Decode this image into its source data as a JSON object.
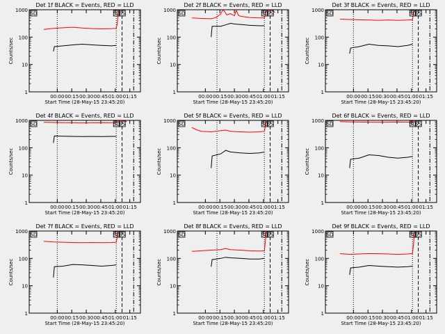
{
  "chart_data": [
    {
      "type": "line",
      "title": "Det 1f BLACK = Events, RED = LLD",
      "xlabel": "Start Time (28-May-15 23:45:20)",
      "ylabel": "Counts/sec",
      "y_scale": "log",
      "ylim": [
        1,
        1000
      ],
      "x_ticks": [
        "00:00",
        "00:15",
        "00:30",
        "00:45",
        "01:00",
        "01:15"
      ],
      "y_ticks": [
        "1",
        "10",
        "100",
        "1000"
      ],
      "markers": [
        "SD",
        "SS"
      ],
      "series": [
        {
          "color": "#ff0000",
          "x": [
            0,
            5,
            10,
            20,
            30,
            40,
            50,
            60,
            70,
            75,
            76,
            77,
            78,
            79,
            80
          ],
          "y": [
            190,
            200,
            210,
            220,
            230,
            215,
            205,
            200,
            205,
            210,
            300,
            700,
            1000,
            1000,
            1000
          ]
        },
        {
          "color": "#000000",
          "x": [
            10,
            11,
            20,
            30,
            40,
            50,
            60,
            70,
            75
          ],
          "y": [
            30,
            45,
            48,
            52,
            55,
            52,
            50,
            48,
            50
          ]
        }
      ],
      "vlines": [
        {
          "style": "dotted",
          "x": 14
        },
        {
          "style": "dotted",
          "x": 75
        },
        {
          "style": "dashed",
          "x": 81
        },
        {
          "style": "dashdot",
          "x": 93
        }
      ]
    },
    {
      "type": "line",
      "title": "Det 2f BLACK = Events, RED = LLD",
      "xlabel": "Start Time (28-May-15 23:45:20)",
      "ylabel": "Counts/sec",
      "y_scale": "log",
      "ylim": [
        1,
        1000
      ],
      "x_ticks": [
        "00:00",
        "00:15",
        "00:30",
        "00:45",
        "01:00",
        "01:15"
      ],
      "y_ticks": [
        "1",
        "10",
        "100",
        "1000"
      ],
      "markers": [
        "SD",
        "SS"
      ],
      "series": [
        {
          "color": "#ff0000",
          "x": [
            0,
            10,
            20,
            25,
            30,
            32,
            34,
            36,
            40,
            44,
            46,
            48,
            50,
            60,
            70,
            75,
            76,
            77,
            78,
            82,
            86
          ],
          "y": [
            500,
            480,
            470,
            520,
            700,
            1000,
            850,
            650,
            720,
            600,
            950,
            640,
            580,
            520,
            500,
            500,
            700,
            1000,
            1000,
            1000,
            800
          ]
        },
        {
          "color": "#000000",
          "x": [
            20,
            21,
            30,
            35,
            40,
            45,
            50,
            60,
            70,
            75
          ],
          "y": [
            100,
            250,
            250,
            280,
            320,
            300,
            290,
            270,
            260,
            260
          ]
        }
      ],
      "vlines": [
        {
          "style": "dotted",
          "x": 26
        },
        {
          "style": "dotted",
          "x": 75
        },
        {
          "style": "dashed",
          "x": 81
        },
        {
          "style": "dashdot",
          "x": 93
        }
      ]
    },
    {
      "type": "line",
      "title": "Det 3f BLACK = Events, RED = LLD",
      "xlabel": "Start Time (28-May-15 23:45:20)",
      "ylabel": "Counts/sec",
      "y_scale": "log",
      "ylim": [
        1,
        1000
      ],
      "x_ticks": [
        "00:00",
        "00:15",
        "00:30",
        "00:45",
        "01:00",
        "01:15"
      ],
      "y_ticks": [
        "1",
        "10",
        "100",
        "1000"
      ],
      "markers": [
        "SD",
        "SS"
      ],
      "series": [
        {
          "color": "#ff0000",
          "x": [
            0,
            10,
            20,
            30,
            40,
            50,
            60,
            70,
            75,
            76,
            77,
            78
          ],
          "y": [
            450,
            440,
            430,
            420,
            410,
            420,
            410,
            420,
            430,
            700,
            1000,
            1000
          ]
        },
        {
          "color": "#000000",
          "x": [
            10,
            11,
            20,
            30,
            40,
            50,
            60,
            70,
            75
          ],
          "y": [
            25,
            40,
            45,
            55,
            50,
            48,
            45,
            50,
            55
          ]
        }
      ],
      "vlines": [
        {
          "style": "dotted",
          "x": 14
        },
        {
          "style": "dotted",
          "x": 75
        },
        {
          "style": "dashed",
          "x": 81
        },
        {
          "style": "dashdot",
          "x": 93
        }
      ]
    },
    {
      "type": "line",
      "title": "Det 4f BLACK = Events, RED = LLD",
      "xlabel": "Start Time (28-May-15 23:45:20)",
      "ylabel": "Counts/sec",
      "y_scale": "log",
      "ylim": [
        1,
        1000
      ],
      "x_ticks": [
        "00:00",
        "00:15",
        "00:30",
        "00:45",
        "01:00",
        "01:15"
      ],
      "y_ticks": [
        "1",
        "10",
        "100",
        "1000"
      ],
      "markers": [
        "SD",
        "SS"
      ],
      "series": [
        {
          "color": "#ff0000",
          "x": [
            0,
            10,
            20,
            30,
            40,
            50,
            60,
            70,
            75,
            76,
            77,
            78,
            80,
            86
          ],
          "y": [
            850,
            840,
            830,
            820,
            810,
            820,
            830,
            820,
            830,
            1000,
            1000,
            1000,
            1000,
            900
          ]
        },
        {
          "color": "#000000",
          "x": [
            10,
            11,
            20,
            30,
            40,
            50,
            60,
            70,
            75
          ],
          "y": [
            150,
            270,
            265,
            260,
            255,
            258,
            255,
            260,
            260
          ]
        }
      ],
      "vlines": [
        {
          "style": "dotted",
          "x": 14
        },
        {
          "style": "dotted",
          "x": 75
        },
        {
          "style": "dashed",
          "x": 81
        },
        {
          "style": "dashdot",
          "x": 93
        }
      ]
    },
    {
      "type": "line",
      "title": "Det 5f BLACK = Events, RED = LLD",
      "xlabel": "Start Time (28-May-15 23:45:20)",
      "ylabel": "Counts/sec",
      "y_scale": "log",
      "ylim": [
        1,
        1000
      ],
      "x_ticks": [
        "00:00",
        "00:15",
        "00:30",
        "00:45",
        "01:00",
        "01:15"
      ],
      "y_ticks": [
        "1",
        "10",
        "100",
        "1000"
      ],
      "markers": [
        "SD",
        "SS"
      ],
      "series": [
        {
          "color": "#ff0000",
          "x": [
            0,
            5,
            10,
            20,
            30,
            35,
            40,
            50,
            60,
            70,
            75,
            76,
            77,
            78
          ],
          "y": [
            550,
            450,
            400,
            380,
            420,
            440,
            400,
            380,
            370,
            380,
            400,
            600,
            1000,
            1000
          ]
        },
        {
          "color": "#000000",
          "x": [
            20,
            21,
            30,
            35,
            40,
            50,
            60,
            70,
            75
          ],
          "y": [
            18,
            50,
            60,
            80,
            70,
            65,
            62,
            65,
            70
          ]
        }
      ],
      "vlines": [
        {
          "style": "dotted",
          "x": 26
        },
        {
          "style": "dotted",
          "x": 75
        },
        {
          "style": "dashed",
          "x": 81
        },
        {
          "style": "dashdot",
          "x": 93
        }
      ]
    },
    {
      "type": "line",
      "title": "Det 6f BLACK = Events, RED = LLD",
      "xlabel": "Start Time (28-May-15 23:45:20)",
      "ylabel": "Counts/sec",
      "y_scale": "log",
      "ylim": [
        1,
        1000
      ],
      "x_ticks": [
        "00:00",
        "00:15",
        "00:30",
        "00:45",
        "01:00",
        "01:15"
      ],
      "y_ticks": [
        "1",
        "10",
        "100",
        "1000"
      ],
      "markers": [
        "SD",
        "SS"
      ],
      "series": [
        {
          "color": "#ff0000",
          "x": [
            0,
            10,
            20,
            30,
            40,
            50,
            60,
            70,
            75,
            76,
            77,
            78
          ],
          "y": [
            900,
            880,
            870,
            860,
            850,
            860,
            870,
            860,
            870,
            1000,
            1000,
            1000
          ]
        },
        {
          "color": "#000000",
          "x": [
            10,
            11,
            20,
            30,
            40,
            50,
            60,
            70,
            75
          ],
          "y": [
            18,
            38,
            42,
            55,
            52,
            45,
            42,
            45,
            48
          ]
        }
      ],
      "vlines": [
        {
          "style": "dotted",
          "x": 14
        },
        {
          "style": "dotted",
          "x": 75
        },
        {
          "style": "dashed",
          "x": 81
        },
        {
          "style": "dashdot",
          "x": 93
        }
      ]
    },
    {
      "type": "line",
      "title": "Det 7f BLACK = Events, RED = LLD",
      "xlabel": "Start Time (28-May-15 23:45:20)",
      "ylabel": "Counts/sec",
      "y_scale": "log",
      "ylim": [
        1,
        1000
      ],
      "x_ticks": [
        "00:00",
        "00:15",
        "00:30",
        "00:45",
        "01:00",
        "01:15"
      ],
      "y_ticks": [
        "1",
        "10",
        "100",
        "1000"
      ],
      "markers": [
        "SD",
        "SS"
      ],
      "series": [
        {
          "color": "#ff0000",
          "x": [
            0,
            10,
            20,
            30,
            40,
            50,
            60,
            70,
            75,
            76,
            77,
            78
          ],
          "y": [
            420,
            400,
            390,
            380,
            375,
            380,
            375,
            380,
            390,
            600,
            1000,
            1000
          ]
        },
        {
          "color": "#000000",
          "x": [
            10,
            11,
            20,
            30,
            40,
            50,
            60,
            70,
            75
          ],
          "y": [
            20,
            50,
            52,
            60,
            58,
            55,
            52,
            55,
            58
          ]
        }
      ],
      "vlines": [
        {
          "style": "dotted",
          "x": 14
        },
        {
          "style": "dotted",
          "x": 75
        },
        {
          "style": "dashed",
          "x": 81
        },
        {
          "style": "dashdot",
          "x": 93
        }
      ]
    },
    {
      "type": "line",
      "title": "Det 8f BLACK = Events, RED = LLD",
      "xlabel": "Start Time (28-May-15 23:45:20)",
      "ylabel": "Counts/sec",
      "y_scale": "log",
      "ylim": [
        1,
        1000
      ],
      "x_ticks": [
        "00:00",
        "00:15",
        "00:30",
        "00:45",
        "01:00",
        "01:15"
      ],
      "y_ticks": [
        "1",
        "10",
        "100",
        "1000"
      ],
      "markers": [
        "SD",
        "SS"
      ],
      "series": [
        {
          "color": "#ff0000",
          "x": [
            0,
            10,
            20,
            30,
            35,
            40,
            50,
            60,
            70,
            75,
            76,
            77,
            78
          ],
          "y": [
            180,
            190,
            200,
            210,
            230,
            210,
            200,
            190,
            185,
            190,
            400,
            1000,
            1000
          ]
        },
        {
          "color": "#000000",
          "x": [
            20,
            21,
            30,
            35,
            40,
            50,
            60,
            70,
            75
          ],
          "y": [
            50,
            90,
            100,
            110,
            105,
            100,
            95,
            95,
            100
          ]
        }
      ],
      "vlines": [
        {
          "style": "dotted",
          "x": 26
        },
        {
          "style": "dotted",
          "x": 75
        },
        {
          "style": "dashed",
          "x": 81
        },
        {
          "style": "dashdot",
          "x": 93
        }
      ]
    },
    {
      "type": "line",
      "title": "Det 9f BLACK = Events, RED = LLD",
      "xlabel": "Start Time (28-May-15 23:45:20)",
      "ylabel": "Counts/sec",
      "y_scale": "log",
      "ylim": [
        1,
        1000
      ],
      "x_ticks": [
        "00:00",
        "00:15",
        "00:30",
        "00:45",
        "01:00",
        "01:15"
      ],
      "y_ticks": [
        "1",
        "10",
        "100",
        "1000"
      ],
      "markers": [
        "SD",
        "SS"
      ],
      "series": [
        {
          "color": "#ff0000",
          "x": [
            0,
            10,
            20,
            30,
            40,
            50,
            60,
            70,
            75,
            76,
            77,
            78
          ],
          "y": [
            150,
            140,
            145,
            150,
            148,
            145,
            140,
            145,
            150,
            300,
            800,
            1000
          ]
        },
        {
          "color": "#000000",
          "x": [
            10,
            11,
            20,
            30,
            40,
            50,
            60,
            70,
            75
          ],
          "y": [
            25,
            45,
            48,
            55,
            52,
            50,
            48,
            50,
            52
          ]
        }
      ],
      "vlines": [
        {
          "style": "dotted",
          "x": 14
        },
        {
          "style": "dotted",
          "x": 75
        },
        {
          "style": "dashed",
          "x": 81
        },
        {
          "style": "dashdot",
          "x": 93
        }
      ]
    }
  ]
}
